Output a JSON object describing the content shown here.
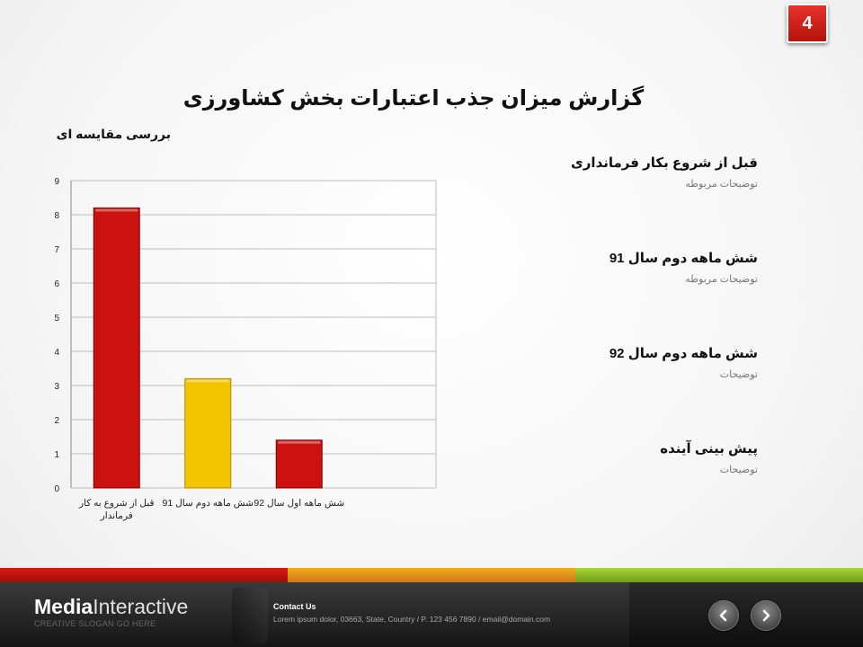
{
  "page_number": "4",
  "title": "گزارش میزان جذب اعتبارات بخش کشاورزی",
  "subtitle": "بررسی مقایسه ای",
  "legend": [
    {
      "title": "قبل از شروع بکار فرمانداری",
      "desc": "توضیحات مربوطه"
    },
    {
      "title": "شش ماهه دوم سال 91",
      "desc": "توضیحات مربوطه"
    },
    {
      "title": "شش ماهه دوم سال 92",
      "desc": "توضیحات"
    },
    {
      "title": "پیش بینی آینده",
      "desc": "توضیحات"
    }
  ],
  "chart_data": {
    "type": "bar",
    "categories": [
      "قبل از شروع به کار فرماندار",
      "شش ماهه دوم سال 91",
      "شش ماهه اول سال 92"
    ],
    "values": [
      8.2,
      3.2,
      1.4
    ],
    "bar_colors": [
      "#cc1111",
      "#f5c400",
      "#cc1111"
    ],
    "ylim": [
      0,
      9
    ],
    "yticks": [
      "0",
      "1",
      "2",
      "3",
      "4",
      "5",
      "6",
      "7",
      "8",
      "9"
    ],
    "grid": true
  },
  "footer": {
    "brand_bold": "Media",
    "brand_light": "Interactive",
    "slogan": "CREATIVE SLOGAN GO HERE",
    "contact_title": "Contact Us",
    "contact_text": "Lorem ipsum dolor, 03663, State, Country / P. 123 456 7890 / email@domain.com",
    "prev_icon": "chevron-left-icon",
    "next_icon": "chevron-right-icon"
  },
  "colors": {
    "accent_red": "#cc1111",
    "accent_yellow": "#f5c400",
    "accent_orange": "#e08a1a",
    "accent_green": "#8bbd25"
  }
}
